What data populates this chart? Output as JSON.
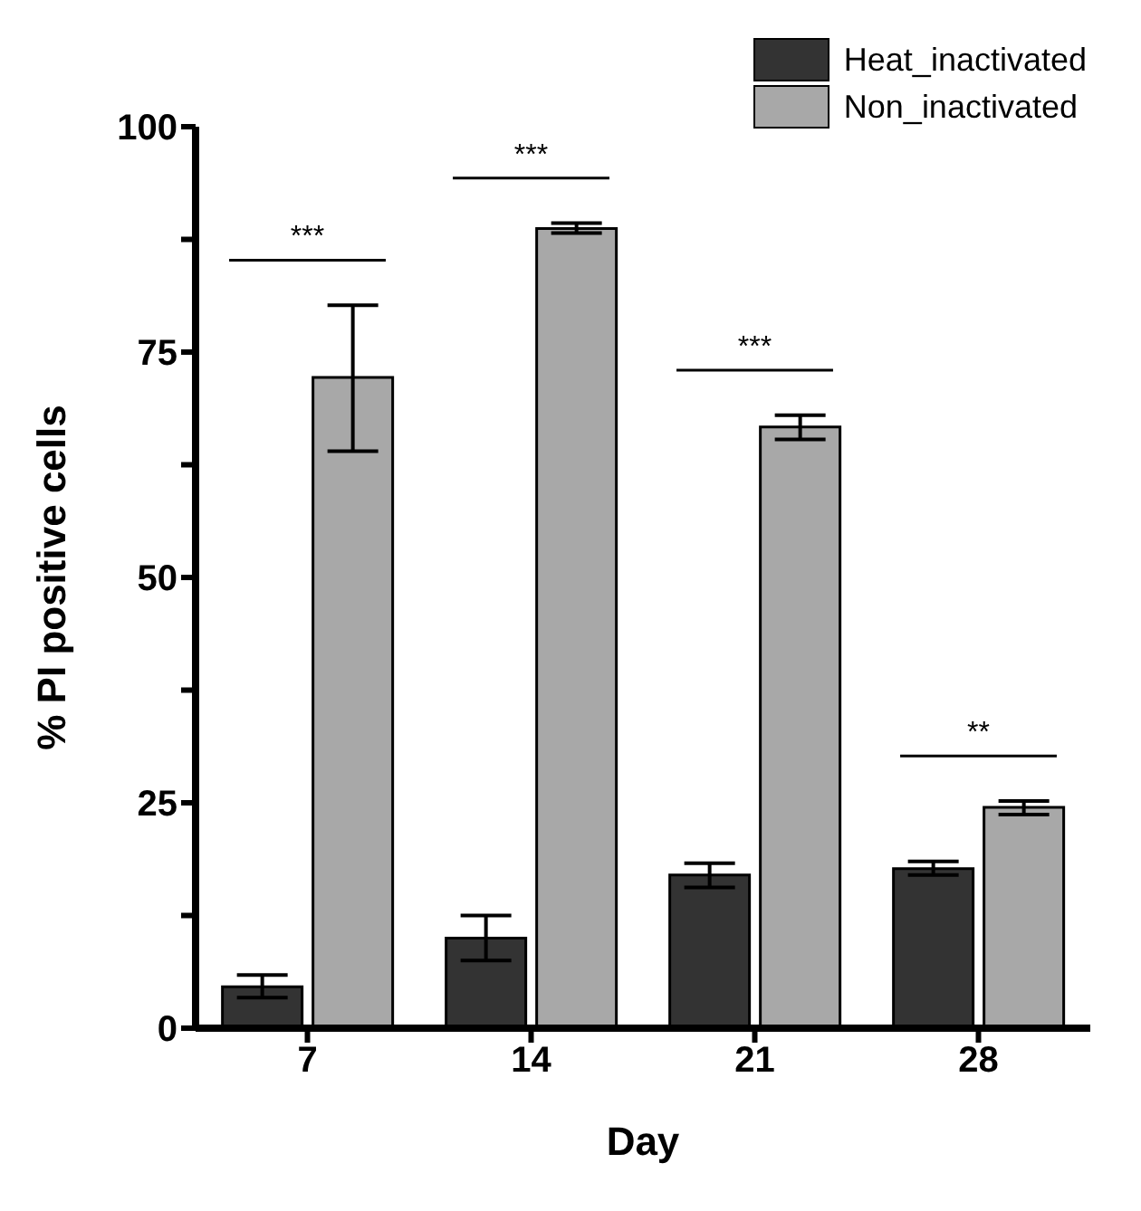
{
  "chart_data": {
    "type": "bar",
    "xlabel": "Day",
    "ylabel": "% PI positive cells",
    "categories": [
      "7",
      "14",
      "21",
      "28"
    ],
    "series": [
      {
        "name": "Heat_inactivated",
        "color": "#333333",
        "values": [
          4.6,
          10.0,
          17.0,
          17.7
        ],
        "errors": [
          [
            3.4,
            5.9
          ],
          [
            7.5,
            12.5
          ],
          [
            15.6,
            18.3
          ],
          [
            17.0,
            18.5
          ]
        ]
      },
      {
        "name": "Non_inactivated",
        "color": "#a8a8a8",
        "values": [
          72.2,
          88.7,
          66.7,
          24.5
        ],
        "errors": [
          [
            64.0,
            80.2
          ],
          [
            88.2,
            89.3
          ],
          [
            65.3,
            68.0
          ],
          [
            23.7,
            25.2
          ]
        ]
      }
    ],
    "ylim": [
      0,
      100
    ],
    "yticks": [
      0,
      {
        "value": 12.5,
        "label": null
      },
      25,
      {
        "value": 37.5,
        "label": null
      },
      50,
      {
        "value": 62.5,
        "label": null
      },
      75,
      {
        "value": 87.5,
        "label": null
      },
      100
    ],
    "annotations": [
      "***",
      "***",
      "***",
      "**"
    ],
    "legend": "top right",
    "grid": false
  }
}
